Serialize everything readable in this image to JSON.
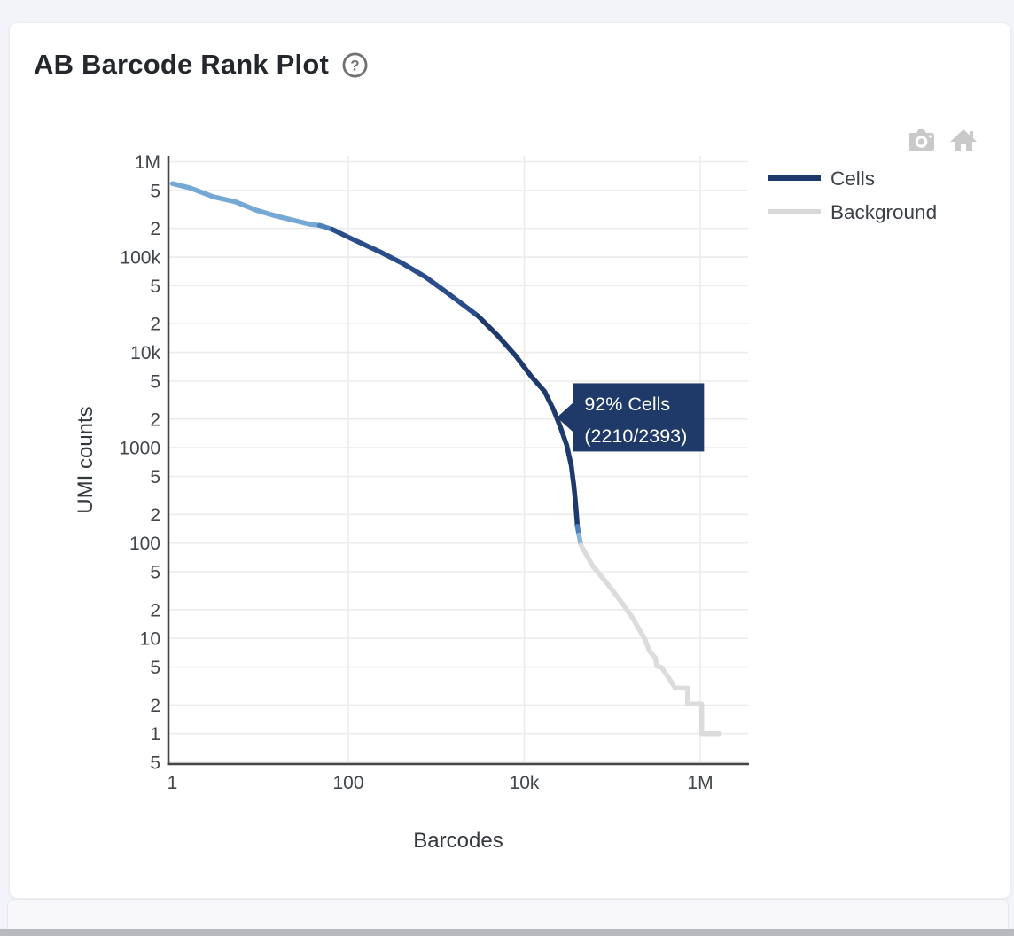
{
  "header": {
    "title": "AB Barcode Rank Plot",
    "help_glyph": "?"
  },
  "toolbar": {
    "icons": [
      {
        "name": "camera-icon",
        "color": "#c9c9c9"
      },
      {
        "name": "home-icon",
        "color": "#c9c9c9"
      }
    ]
  },
  "legend": {
    "items": [
      {
        "label": "Cells",
        "color": "#1e3a6d"
      },
      {
        "label": "Background",
        "color": "#d8d8d8"
      }
    ]
  },
  "chart_data": {
    "type": "line",
    "title": "AB Barcode Rank Plot",
    "xlabel": "Barcodes",
    "ylabel": "UMI counts",
    "x_scale": "log",
    "y_scale": "log",
    "grid": true,
    "legend_position": "right",
    "x_range": [
      0.9,
      3500000
    ],
    "y_range": [
      0.48,
      1150000
    ],
    "x_ticks": [
      {
        "label": "1",
        "value": 1
      },
      {
        "label": "100",
        "value": 100
      },
      {
        "label": "10k",
        "value": 10000
      },
      {
        "label": "1M",
        "value": 1000000
      }
    ],
    "y_ticks": [
      {
        "label": "1M",
        "value": 1000000
      },
      {
        "label": "5",
        "value": 500000
      },
      {
        "label": "2",
        "value": 200000
      },
      {
        "label": "100k",
        "value": 100000
      },
      {
        "label": "5",
        "value": 50000
      },
      {
        "label": "2",
        "value": 20000
      },
      {
        "label": "10k",
        "value": 10000
      },
      {
        "label": "5",
        "value": 5000
      },
      {
        "label": "2",
        "value": 2000
      },
      {
        "label": "1000",
        "value": 1000
      },
      {
        "label": "5",
        "value": 500
      },
      {
        "label": "2",
        "value": 200
      },
      {
        "label": "100",
        "value": 100
      },
      {
        "label": "5",
        "value": 50
      },
      {
        "label": "2",
        "value": 20
      },
      {
        "label": "10",
        "value": 10
      },
      {
        "label": "5",
        "value": 5
      },
      {
        "label": "2",
        "value": 2
      },
      {
        "label": "1",
        "value": 1
      },
      {
        "label": "5",
        "value": 0.5
      }
    ],
    "segments": [
      {
        "name": "cells-mixed-light",
        "series": "Cells",
        "color": "#74a9d6",
        "points": [
          [
            1,
            590000
          ],
          [
            1.6,
            530000
          ],
          [
            2.9,
            430000
          ],
          [
            5.2,
            380000
          ],
          [
            9,
            310000
          ],
          [
            15,
            270000
          ],
          [
            23,
            245000
          ],
          [
            37,
            220000
          ],
          [
            47,
            215000
          ]
        ]
      },
      {
        "name": "cells-gradient-upper",
        "series": "Cells",
        "color": "#4b80b8",
        "points": [
          [
            47,
            215000
          ],
          [
            66,
            195000
          ]
        ]
      },
      {
        "name": "cells-mid",
        "series": "Cells",
        "color": "#2a4c8a",
        "points": [
          [
            66,
            195000
          ],
          [
            117,
            151000
          ],
          [
            236,
            112000
          ],
          [
            420,
            85000
          ],
          [
            750,
            62000
          ],
          [
            1340,
            42000
          ],
          [
            3000,
            24000
          ]
        ]
      },
      {
        "name": "cells-dark",
        "series": "Cells",
        "color": "#1e3a6c",
        "points": [
          [
            3000,
            24000
          ],
          [
            5000,
            15000
          ],
          [
            8000,
            9200
          ],
          [
            12000,
            5600
          ],
          [
            17000,
            3900
          ],
          [
            21500,
            2500
          ],
          [
            25800,
            1630
          ],
          [
            30300,
            1070
          ],
          [
            34200,
            650
          ],
          [
            36600,
            400
          ],
          [
            38300,
            260
          ],
          [
            39500,
            185
          ],
          [
            40100,
            150
          ]
        ]
      },
      {
        "name": "cells-gradient-lower",
        "series": "Cells",
        "color": "#4b80b8",
        "points": [
          [
            40100,
            150
          ],
          [
            41800,
            122
          ]
        ]
      },
      {
        "name": "mixed-light-lower",
        "series": "Cells",
        "color": "#8ab5da",
        "points": [
          [
            41800,
            122
          ],
          [
            44000,
            95
          ]
        ]
      },
      {
        "name": "background-tail",
        "series": "Background",
        "color": "#dcdcdc",
        "points": [
          [
            44000,
            95
          ],
          [
            61000,
            56
          ],
          [
            87000,
            38
          ],
          [
            123000,
            25
          ],
          [
            166000,
            17
          ],
          [
            235000,
            9.8
          ],
          [
            264000,
            7.4
          ],
          [
            310000,
            6.2
          ],
          [
            320000,
            5.1
          ],
          [
            360000,
            5.0
          ],
          [
            435000,
            3.9
          ],
          [
            520000,
            3.0
          ],
          [
            720000,
            3.0
          ],
          [
            720000,
            2.05
          ],
          [
            1040000,
            2.05
          ],
          [
            1040000,
            1.0
          ],
          [
            1660000,
            1.0
          ]
        ]
      }
    ],
    "annotation": {
      "x": 23500,
      "y": 2080,
      "lines": [
        "92% Cells",
        "(2210/2393)"
      ],
      "bg": "#1f3a68",
      "text_color": "#ffffff"
    }
  }
}
